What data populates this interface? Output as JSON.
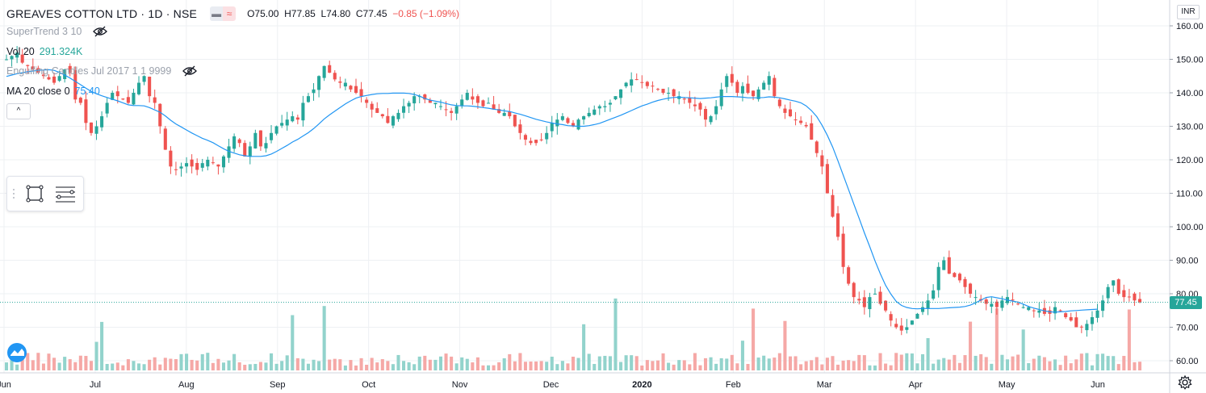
{
  "header": {
    "symbol_title": "GREAVES COTTON LTD · 1D · NSE",
    "open": "O75.00",
    "high": "H77.85",
    "low": "L74.80",
    "close": "C77.45",
    "change": "−0.85 (−1.09%)"
  },
  "indicators": {
    "supertrend": "SuperTrend 3 10",
    "vol_name": "Vol 20",
    "vol_value": "291.324K",
    "engulfing": "Engulfing Candles Jul 2017 1 1 9999",
    "ma_name": "MA 20 close 0",
    "ma_value": "75.40"
  },
  "toolbar": {
    "collapse": "^"
  },
  "currency": "INR",
  "last_price_label": "77.45",
  "colors": {
    "up": "#26a69a",
    "down": "#ef5350",
    "up_vol": "#92d3cc",
    "down_vol": "#f5a8a6",
    "ma": "#2196f3",
    "grid": "#eef0f3"
  },
  "icons": [
    "eye-off-icon",
    "rectangle-drawing-icon",
    "lines-tool-icon",
    "tradingview-logo-icon",
    "gear-icon"
  ],
  "chart_data": {
    "type": "candlestick",
    "ylim": [
      57,
      164
    ],
    "yticks": [
      60,
      70,
      80,
      90,
      100,
      110,
      120,
      130,
      140,
      150,
      160
    ],
    "x_labels": [
      "Jun",
      "Jul",
      "Aug",
      "Sep",
      "Oct",
      "Nov",
      "Dec",
      "2020",
      "Feb",
      "Mar",
      "Apr",
      "May",
      "Jun"
    ],
    "last_price": 77.45,
    "close": [
      150,
      151,
      152,
      149,
      148,
      147,
      146,
      145,
      144,
      143,
      145,
      147,
      146,
      138,
      137,
      131,
      128,
      130,
      133,
      137,
      140,
      139,
      138,
      137,
      140,
      143,
      145,
      139,
      137,
      130,
      123,
      118,
      117,
      118,
      119,
      118,
      117,
      119,
      120,
      119,
      118,
      121,
      124,
      127,
      125,
      121,
      124,
      128,
      124,
      125,
      128,
      130,
      131,
      132,
      133,
      132,
      137,
      139,
      141,
      145,
      148,
      146,
      144,
      143,
      143,
      141,
      140,
      139,
      137,
      135,
      134,
      133,
      131,
      133,
      134,
      136,
      137,
      139,
      139,
      138,
      137,
      137,
      136,
      135,
      134,
      136,
      138,
      140,
      138,
      137,
      136,
      137,
      135,
      134,
      134,
      133,
      130,
      128,
      126,
      125,
      125,
      126,
      128,
      131,
      132,
      133,
      131,
      130,
      132,
      133,
      134,
      135,
      136,
      136,
      137,
      139,
      141,
      143,
      144,
      144,
      143,
      142,
      142,
      141,
      140,
      140,
      139,
      139,
      138,
      137,
      136,
      135,
      132,
      133,
      136,
      141,
      145,
      143,
      140,
      142,
      140,
      139,
      141,
      143,
      145,
      139,
      136,
      134,
      133,
      132,
      131,
      130,
      126,
      122,
      118,
      110,
      103,
      97,
      88,
      83,
      79,
      78,
      76,
      79,
      80,
      77,
      75,
      72,
      70,
      69,
      70,
      72,
      74,
      76,
      78,
      81,
      88,
      90,
      86,
      85,
      84,
      82,
      80,
      79,
      78,
      77,
      77,
      76,
      78,
      79,
      78,
      77,
      76,
      76,
      75,
      75,
      74,
      74,
      76,
      75,
      73,
      72,
      70,
      70,
      71,
      73,
      75,
      78,
      82,
      84,
      80,
      79,
      79,
      78,
      77.45
    ],
    "ma20": [
      144.9,
      145.3,
      145.7,
      146.0,
      146.3,
      146.5,
      146.7,
      146.8,
      146.9,
      146.7,
      146.1,
      145.3,
      144.4,
      143.4,
      142.4,
      141.4,
      140.4,
      139.7,
      139.1,
      138.6,
      138.1,
      137.6,
      137.0,
      136.4,
      136.2,
      136.2,
      136.1,
      135.6,
      134.9,
      134.2,
      133.1,
      131.8,
      130.7,
      129.8,
      128.9,
      128.0,
      127.2,
      126.4,
      125.8,
      125.1,
      124.2,
      123.3,
      122.5,
      122.0,
      121.5,
      121.2,
      121.0,
      121.0,
      121.0,
      121.2,
      121.7,
      122.5,
      123.4,
      124.3,
      125.3,
      126.1,
      127.1,
      128.1,
      129.3,
      130.7,
      132.2,
      133.4,
      134.5,
      135.6,
      136.7,
      137.6,
      138.4,
      138.9,
      139.2,
      139.5,
      139.7,
      139.8,
      139.8,
      139.9,
      139.9,
      139.9,
      139.8,
      139.5,
      139.0,
      138.3,
      137.8,
      137.5,
      137.2,
      136.8,
      136.4,
      136.2,
      136.1,
      136.1,
      136.0,
      135.8,
      135.6,
      135.4,
      135.1,
      134.9,
      134.6,
      134.4,
      134.0,
      133.6,
      133.1,
      132.6,
      132.1,
      131.7,
      131.3,
      131.0,
      130.7,
      130.5,
      130.2,
      130.1,
      130.0,
      130.0,
      130.2,
      130.5,
      130.9,
      131.5,
      132.1,
      132.7,
      133.3,
      134.0,
      134.7,
      135.4,
      136.1,
      136.6,
      137.2,
      137.7,
      138.1,
      138.4,
      138.6,
      138.7,
      138.6,
      138.5,
      138.4,
      138.3,
      138.4,
      138.5,
      138.7,
      138.9,
      138.9,
      138.9,
      138.8,
      138.7,
      138.5,
      138.5,
      138.5,
      138.6,
      138.8,
      138.7,
      138.5,
      138.2,
      137.8,
      137.5,
      137.0,
      136.1,
      134.7,
      132.9,
      130.3,
      127.3,
      123.8,
      119.7,
      115.4,
      111.1,
      106.8,
      102.5,
      98.2,
      94.1,
      89.8,
      86.0,
      82.5,
      79.9,
      77.7,
      76.5,
      75.9,
      75.6,
      75.5,
      75.6,
      75.6,
      75.6,
      75.6,
      75.7,
      75.8,
      75.9,
      76.0,
      76.2,
      76.6,
      77.3,
      78.1,
      78.9,
      79.1,
      78.8,
      78.5,
      78.1,
      77.8,
      77.5,
      76.9,
      76.2,
      75.7,
      75.3,
      74.9,
      74.6,
      74.5,
      74.6,
      74.7,
      74.9,
      75.0,
      75.1,
      75.2,
      75.3,
      75.4
    ]
  }
}
